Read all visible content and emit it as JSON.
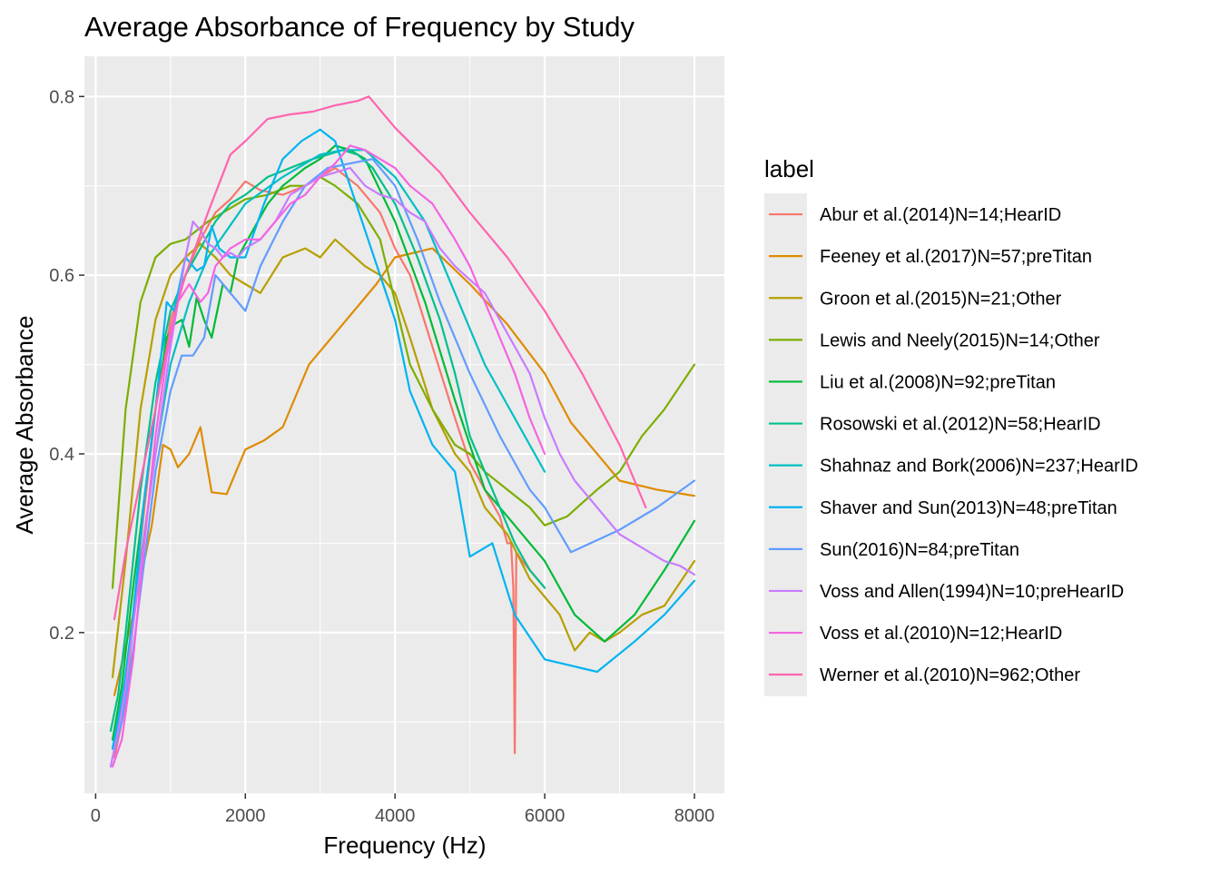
{
  "chart_data": {
    "type": "line",
    "title": "Average Absorbance of Frequency by Study",
    "xlabel": "Frequency (Hz)",
    "ylabel": "Average Absorbance",
    "xlim": [
      -150,
      8400
    ],
    "ylim": [
      0.02,
      0.845
    ],
    "xticks": [
      0,
      2000,
      4000,
      6000,
      8000
    ],
    "xtick_labels": [
      "0",
      "2000",
      "4000",
      "6000",
      "8000"
    ],
    "yticks": [
      0.2,
      0.4,
      0.6,
      0.8
    ],
    "ytick_labels": [
      "0.2",
      "0.4",
      "0.6",
      "0.8"
    ],
    "grid": true,
    "legend": {
      "title": "label",
      "position": "right"
    },
    "series": [
      {
        "name": "Abur et al.(2014)N=14;HearID",
        "color": "#F8766D",
        "x": [
          250,
          400,
          600,
          800,
          1000,
          1200,
          1400,
          1600,
          1800,
          2000,
          2200,
          2500,
          2800,
          3000,
          3200,
          3500,
          3800,
          4000,
          4200,
          4500,
          4800,
          5000,
          5200,
          5400,
          5500,
          5550,
          5580,
          5600,
          5620,
          5700,
          5800,
          5900,
          6000
        ],
        "y": [
          0.06,
          0.12,
          0.3,
          0.45,
          0.55,
          0.6,
          0.64,
          0.67,
          0.685,
          0.705,
          0.695,
          0.69,
          0.7,
          0.71,
          0.72,
          0.7,
          0.67,
          0.63,
          0.6,
          0.52,
          0.44,
          0.39,
          0.36,
          0.33,
          0.3,
          0.3,
          0.25,
          0.065,
          0.29,
          0.28,
          0.27,
          0.26,
          0.25
        ]
      },
      {
        "name": "Feeney et al.(2017)N=57;preTitan",
        "color": "#DE8C00",
        "x": [
          250,
          500,
          750,
          900,
          1000,
          1100,
          1250,
          1400,
          1550,
          1750,
          2000,
          2250,
          2500,
          2850,
          3250,
          3750,
          4000,
          4500,
          5000,
          5500,
          6000,
          6350,
          7000,
          7500,
          8000
        ],
        "y": [
          0.13,
          0.22,
          0.32,
          0.41,
          0.405,
          0.385,
          0.4,
          0.43,
          0.357,
          0.355,
          0.405,
          0.415,
          0.43,
          0.5,
          0.54,
          0.59,
          0.62,
          0.63,
          0.59,
          0.545,
          0.49,
          0.435,
          0.37,
          0.36,
          0.353
        ]
      },
      {
        "name": "Groon et al.(2015)N=21;Other",
        "color": "#B79F00",
        "x": [
          226,
          400,
          600,
          800,
          1000,
          1200,
          1400,
          1600,
          1800,
          2000,
          2200,
          2500,
          2800,
          3000,
          3200,
          3400,
          3600,
          3800,
          4000,
          4200,
          4500,
          4800,
          5000,
          5200,
          5500,
          5800,
          6000,
          6200,
          6400,
          6600,
          6800,
          7000,
          7300,
          7600,
          8000
        ],
        "y": [
          0.15,
          0.28,
          0.45,
          0.55,
          0.6,
          0.62,
          0.635,
          0.62,
          0.6,
          0.59,
          0.58,
          0.62,
          0.63,
          0.62,
          0.64,
          0.625,
          0.61,
          0.6,
          0.58,
          0.53,
          0.45,
          0.4,
          0.38,
          0.34,
          0.31,
          0.26,
          0.24,
          0.22,
          0.18,
          0.2,
          0.19,
          0.2,
          0.22,
          0.23,
          0.28
        ]
      },
      {
        "name": "Lewis and Neely(2015)N=14;Other",
        "color": "#7CAE00",
        "x": [
          226,
          400,
          600,
          800,
          1000,
          1200,
          1500,
          1800,
          2000,
          2300,
          2600,
          2800,
          3000,
          3200,
          3500,
          3800,
          4000,
          4200,
          4500,
          4800,
          5000,
          5200,
          5500,
          5800,
          6000,
          6300,
          6700,
          7000,
          7300,
          7600,
          8000
        ],
        "y": [
          0.25,
          0.45,
          0.57,
          0.62,
          0.635,
          0.64,
          0.66,
          0.675,
          0.685,
          0.69,
          0.7,
          0.7,
          0.71,
          0.7,
          0.68,
          0.64,
          0.57,
          0.5,
          0.45,
          0.41,
          0.4,
          0.38,
          0.36,
          0.34,
          0.32,
          0.33,
          0.36,
          0.38,
          0.42,
          0.45,
          0.5
        ]
      },
      {
        "name": "Liu et al.(2008)N=92;preTitan",
        "color": "#00BA38",
        "x": [
          226,
          350,
          500,
          650,
          800,
          950,
          1050,
          1150,
          1250,
          1350,
          1450,
          1550,
          1700,
          1800,
          1900,
          2100,
          2300,
          2500,
          2800,
          3000,
          3200,
          3400,
          3600,
          4000,
          4400,
          4800,
          5200,
          5500,
          6000,
          6400,
          6800,
          7200,
          7600,
          8000
        ],
        "y": [
          0.08,
          0.14,
          0.25,
          0.35,
          0.45,
          0.53,
          0.545,
          0.55,
          0.52,
          0.575,
          0.55,
          0.53,
          0.59,
          0.58,
          0.62,
          0.65,
          0.68,
          0.7,
          0.72,
          0.73,
          0.745,
          0.74,
          0.73,
          0.66,
          0.57,
          0.46,
          0.36,
          0.33,
          0.28,
          0.22,
          0.19,
          0.22,
          0.27,
          0.325
        ]
      },
      {
        "name": "Rosowski et al.(2012)N=58;HearID",
        "color": "#00C08B",
        "x": [
          200,
          300,
          400,
          500,
          600,
          700,
          800,
          1000,
          1200,
          1400,
          1600,
          1800,
          2000,
          2300,
          2600,
          2900,
          3100,
          3300,
          3500,
          3700,
          4000,
          4300,
          4600,
          4800,
          5000,
          5200,
          5400,
          5600,
          5800,
          6000
        ],
        "y": [
          0.09,
          0.13,
          0.2,
          0.28,
          0.36,
          0.42,
          0.48,
          0.56,
          0.6,
          0.63,
          0.66,
          0.68,
          0.69,
          0.71,
          0.72,
          0.73,
          0.735,
          0.74,
          0.735,
          0.72,
          0.68,
          0.62,
          0.55,
          0.49,
          0.42,
          0.38,
          0.34,
          0.3,
          0.27,
          0.25
        ]
      },
      {
        "name": "Shahnaz and Bork(2006)N=237;HearID",
        "color": "#00BFC4",
        "x": [
          226,
          400,
          600,
          800,
          1000,
          1250,
          1500,
          2000,
          2500,
          3000,
          3300,
          3600,
          4000,
          4400,
          4800,
          5200,
          5600,
          6000
        ],
        "y": [
          0.07,
          0.15,
          0.28,
          0.4,
          0.5,
          0.57,
          0.62,
          0.68,
          0.71,
          0.735,
          0.74,
          0.74,
          0.71,
          0.66,
          0.58,
          0.5,
          0.44,
          0.38
        ]
      },
      {
        "name": "Shaver and Sun(2013)N=48;preTitan",
        "color": "#00B4F0",
        "x": [
          226,
          350,
          500,
          650,
          800,
          950,
          1050,
          1200,
          1350,
          1450,
          1550,
          1650,
          1800,
          2000,
          2250,
          2500,
          2750,
          3000,
          3200,
          3400,
          3600,
          3800,
          4000,
          4200,
          4500,
          4800,
          5000,
          5300,
          5600,
          6000,
          6700,
          7200,
          7600,
          8000
        ],
        "y": [
          0.07,
          0.12,
          0.22,
          0.35,
          0.45,
          0.57,
          0.56,
          0.62,
          0.605,
          0.61,
          0.655,
          0.63,
          0.62,
          0.62,
          0.68,
          0.73,
          0.75,
          0.763,
          0.75,
          0.7,
          0.65,
          0.6,
          0.55,
          0.47,
          0.41,
          0.38,
          0.285,
          0.3,
          0.22,
          0.17,
          0.156,
          0.19,
          0.22,
          0.258
        ]
      },
      {
        "name": "Sun(2016)N=84;preTitan",
        "color": "#619CFF",
        "x": [
          226,
          350,
          500,
          650,
          800,
          1000,
          1150,
          1300,
          1450,
          1600,
          1800,
          2000,
          2200,
          2500,
          2800,
          3100,
          3400,
          3700,
          4000,
          4300,
          4600,
          5000,
          5400,
          5800,
          6000,
          6350,
          7000,
          7500,
          8000
        ],
        "y": [
          0.06,
          0.1,
          0.18,
          0.28,
          0.38,
          0.47,
          0.51,
          0.51,
          0.53,
          0.6,
          0.58,
          0.56,
          0.61,
          0.66,
          0.7,
          0.72,
          0.725,
          0.73,
          0.7,
          0.64,
          0.57,
          0.49,
          0.42,
          0.36,
          0.34,
          0.29,
          0.315,
          0.34,
          0.37
        ]
      },
      {
        "name": "Voss and Allen(1994)N=10;preHearID",
        "color": "#C77CFF",
        "x": [
          200,
          300,
          400,
          550,
          700,
          850,
          1000,
          1100,
          1200,
          1300,
          1400,
          1500,
          1600,
          1700,
          1800,
          1900,
          2000,
          2200,
          2400,
          2600,
          2800,
          3000,
          3200,
          3400,
          3600,
          3800,
          4000,
          4200,
          4400,
          4600,
          4800,
          5000,
          5200,
          5400,
          5600,
          5800,
          6000,
          6200,
          6400,
          6600,
          6800,
          7000,
          7200,
          7400,
          7600,
          7800,
          8000
        ],
        "y": [
          0.05,
          0.09,
          0.14,
          0.24,
          0.34,
          0.43,
          0.52,
          0.57,
          0.62,
          0.66,
          0.65,
          0.635,
          0.63,
          0.62,
          0.625,
          0.62,
          0.63,
          0.64,
          0.66,
          0.69,
          0.7,
          0.71,
          0.715,
          0.72,
          0.7,
          0.69,
          0.685,
          0.67,
          0.66,
          0.63,
          0.61,
          0.595,
          0.58,
          0.55,
          0.52,
          0.49,
          0.44,
          0.4,
          0.37,
          0.35,
          0.33,
          0.31,
          0.3,
          0.29,
          0.28,
          0.275,
          0.265
        ]
      },
      {
        "name": "Voss et al.(2010)N=12;HearID",
        "color": "#F564E3",
        "x": [
          226,
          350,
          500,
          650,
          800,
          950,
          1100,
          1250,
          1400,
          1500,
          1600,
          1800,
          2000,
          2200,
          2400,
          2600,
          2800,
          3000,
          3200,
          3400,
          3600,
          3800,
          4000,
          4200,
          4500,
          4800,
          5000,
          5200,
          5400,
          5600,
          5800,
          6000
        ],
        "y": [
          0.05,
          0.08,
          0.17,
          0.3,
          0.42,
          0.51,
          0.57,
          0.59,
          0.57,
          0.58,
          0.61,
          0.63,
          0.64,
          0.64,
          0.66,
          0.68,
          0.69,
          0.71,
          0.725,
          0.745,
          0.74,
          0.73,
          0.72,
          0.7,
          0.68,
          0.64,
          0.61,
          0.57,
          0.53,
          0.49,
          0.44,
          0.4
        ]
      },
      {
        "name": "Werner et al.(2010)N=962;Other",
        "color": "#FF64B0",
        "x": [
          250,
          400,
          600,
          800,
          1000,
          1200,
          1500,
          1800,
          2000,
          2300,
          2600,
          2900,
          3200,
          3500,
          3650,
          4000,
          4300,
          4600,
          5000,
          5500,
          6000,
          6500,
          7000,
          7350
        ],
        "y": [
          0.215,
          0.29,
          0.37,
          0.45,
          0.54,
          0.6,
          0.67,
          0.735,
          0.75,
          0.775,
          0.78,
          0.783,
          0.79,
          0.795,
          0.8,
          0.765,
          0.74,
          0.715,
          0.67,
          0.62,
          0.56,
          0.49,
          0.41,
          0.34
        ]
      }
    ]
  }
}
